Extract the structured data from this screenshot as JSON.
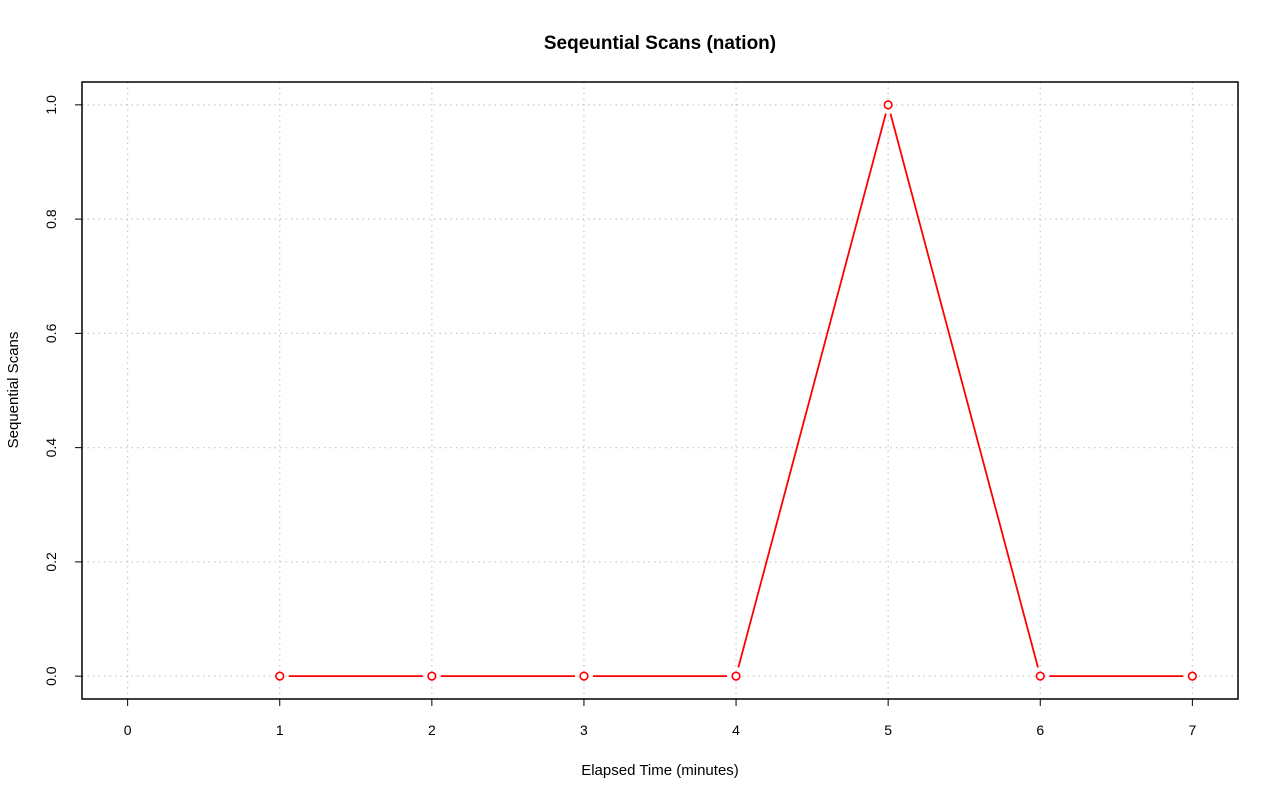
{
  "chart_data": {
    "type": "line",
    "title": "Seqeuntial Scans (nation)",
    "xlabel": "Elapsed Time (minutes)",
    "ylabel": "Sequential Scans",
    "xlim": [
      -0.3,
      7.3
    ],
    "ylim": [
      -0.04,
      1.04
    ],
    "x_ticks": [
      0,
      1,
      2,
      3,
      4,
      5,
      6,
      7
    ],
    "y_ticks": [
      0.0,
      0.2,
      0.4,
      0.6,
      0.8,
      1.0
    ],
    "x_tick_labels": [
      "0",
      "1",
      "2",
      "3",
      "4",
      "5",
      "6",
      "7"
    ],
    "y_tick_labels": [
      "0.0",
      "0.2",
      "0.4",
      "0.6",
      "0.8",
      "1.0"
    ],
    "grid": true,
    "series": [
      {
        "color": "#ff0000",
        "marker": "open-circle",
        "x": [
          1,
          2,
          3,
          4,
          5,
          6,
          7
        ],
        "y": [
          0,
          0,
          0,
          0,
          1,
          0,
          0
        ]
      }
    ]
  }
}
